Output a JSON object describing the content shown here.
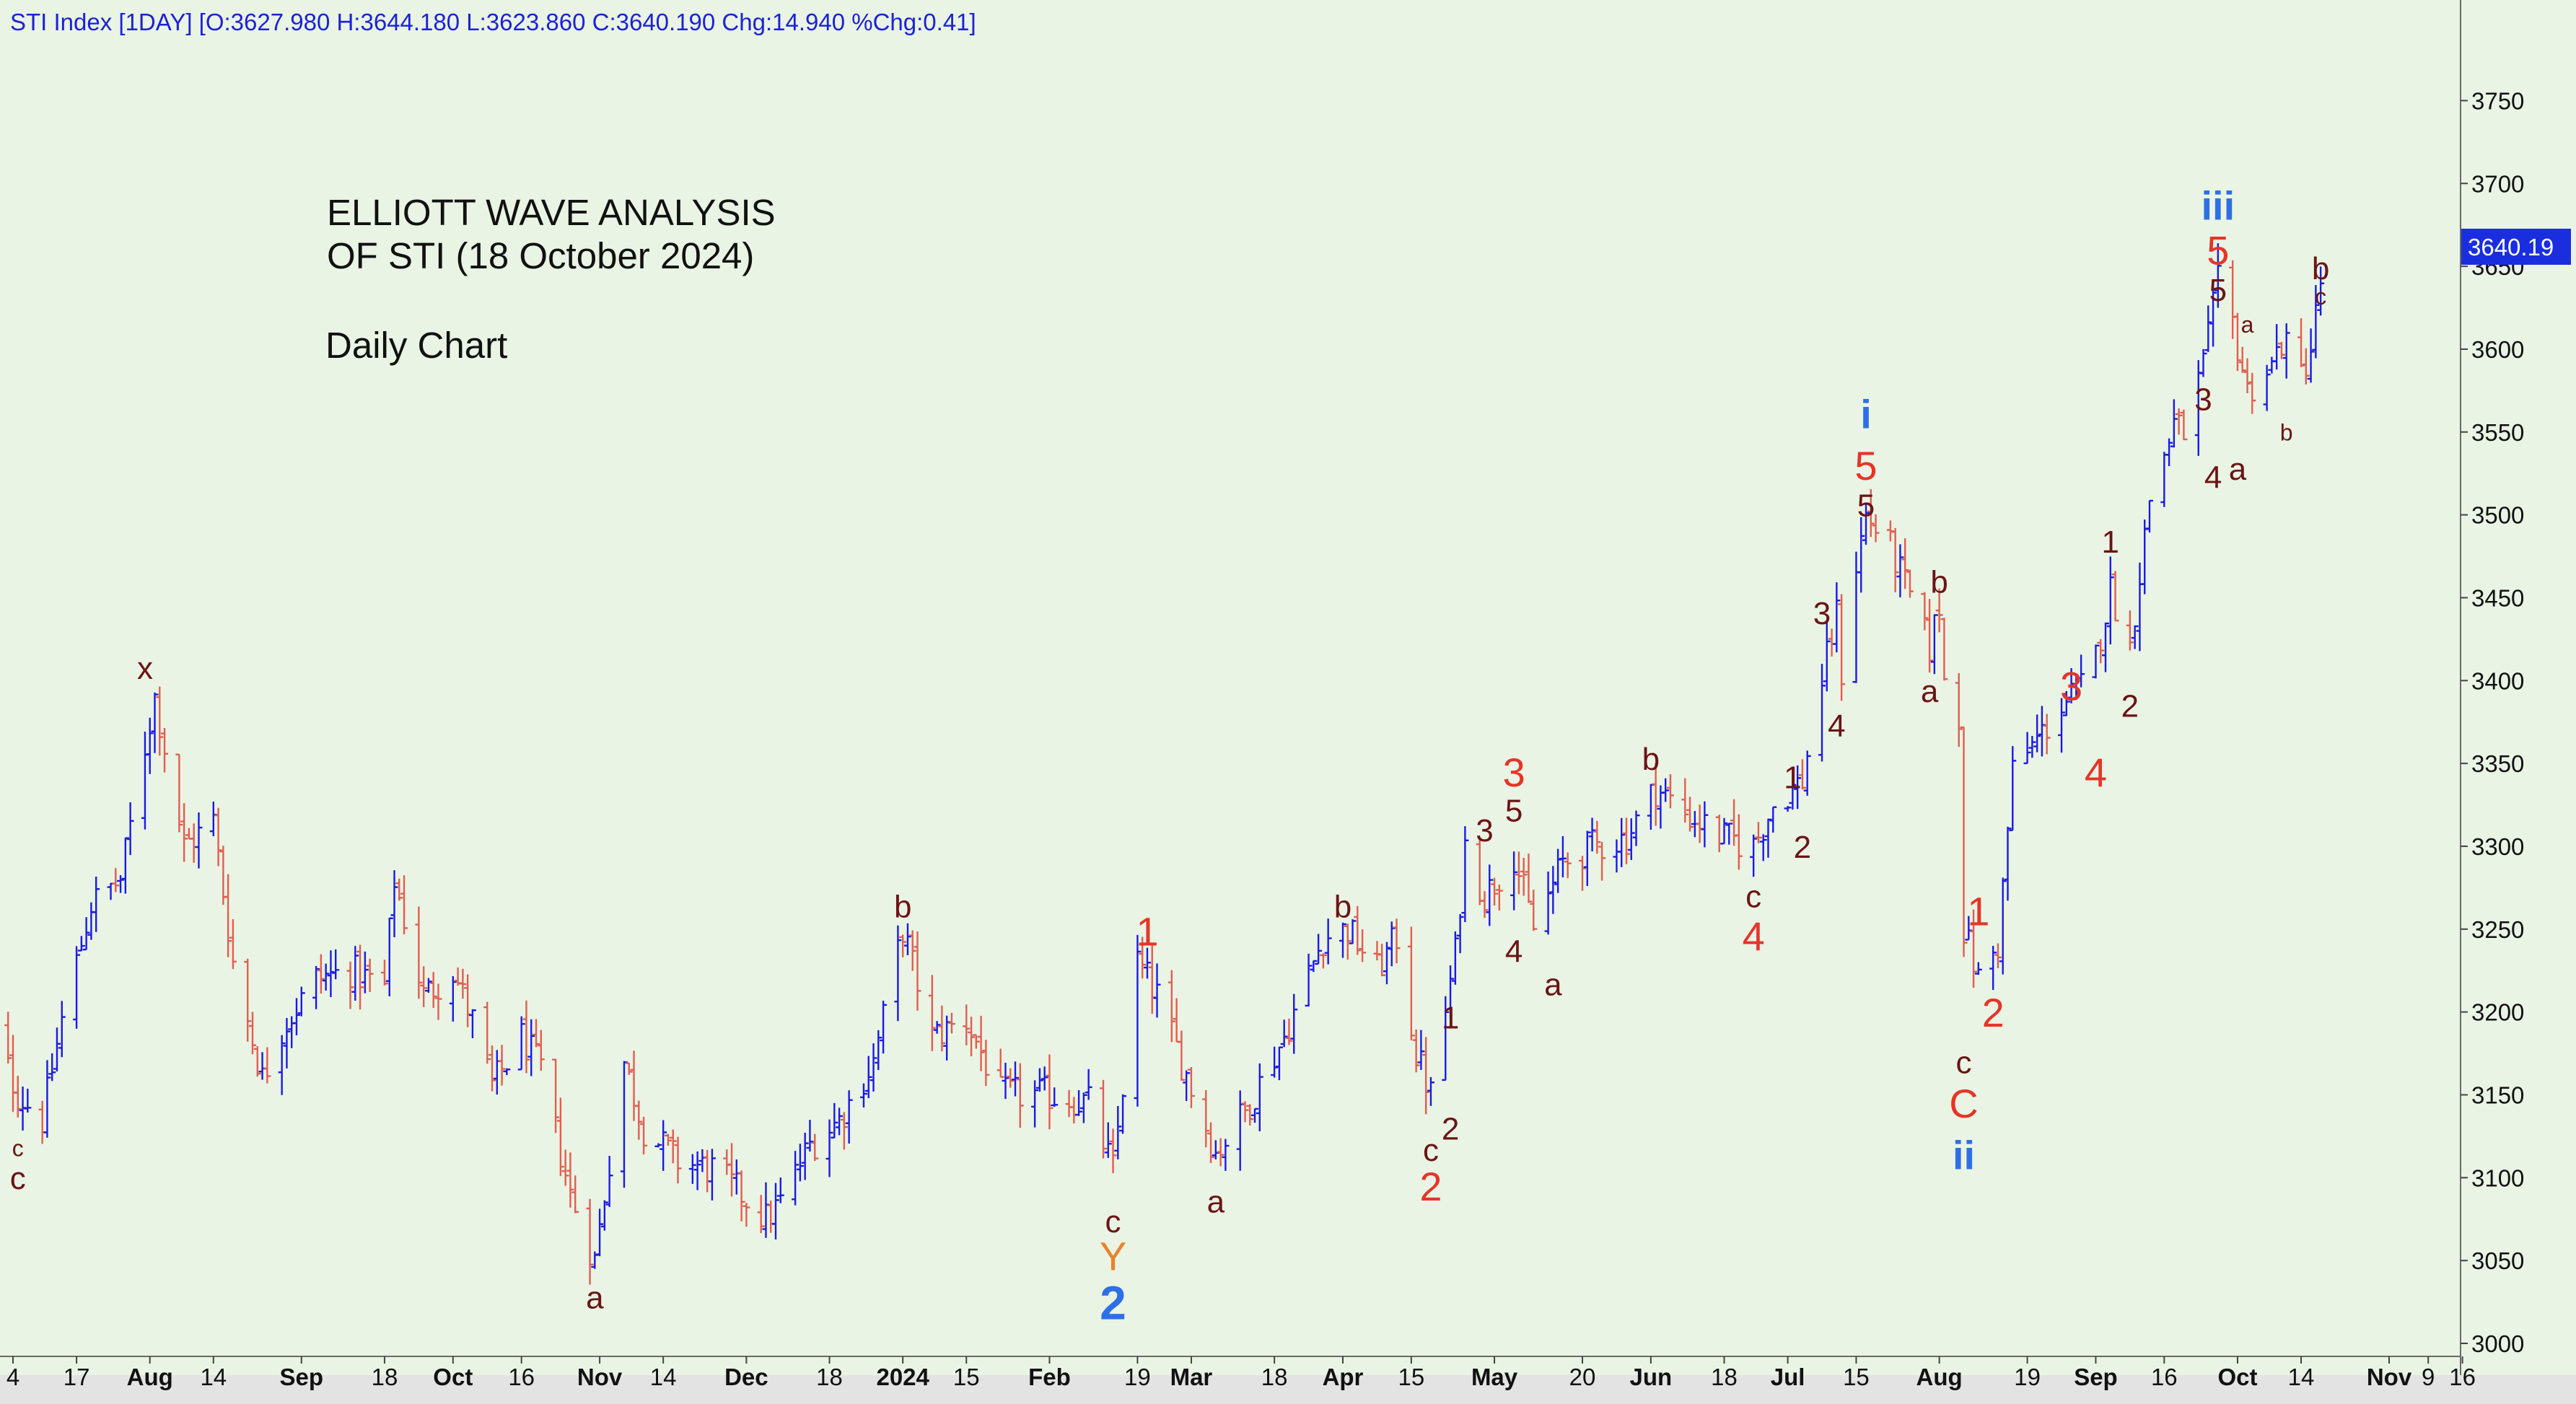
{
  "header": "STI Index [1DAY] [O:3627.980 H:3644.180 L:3623.860 C:3640.190 Chg:14.940 %Chg:0.41]",
  "annotation": {
    "title_line1": "ELLIOTT WAVE ANALYSIS",
    "title_line2": "OF STI (18 October 2024)",
    "subtitle": "Daily Chart"
  },
  "price_tag": "3640.19",
  "colors": {
    "background": "#e9f4e4",
    "up": "#1a1ae6",
    "down": "#e35d4f",
    "wave_red": "#e53528",
    "wave_dark": "#6b1414",
    "wave_blue": "#2f6fe6",
    "tag": "#1a2ee0"
  },
  "chart_data": {
    "type": "ohlc",
    "ylim": [
      3000,
      3775
    ],
    "y_ticks": [
      3000,
      3050,
      3100,
      3150,
      3200,
      3250,
      3300,
      3350,
      3400,
      3450,
      3500,
      3550,
      3600,
      3650,
      3700,
      3750
    ],
    "x_ticks": [
      {
        "label": "4",
        "date": "2023-07-04",
        "bold": false
      },
      {
        "label": "17",
        "date": "2023-07-17",
        "bold": false
      },
      {
        "label": "Aug",
        "date": "2023-08-01",
        "bold": true
      },
      {
        "label": "14",
        "date": "2023-08-14",
        "bold": false
      },
      {
        "label": "Sep",
        "date": "2023-09-01",
        "bold": true
      },
      {
        "label": "18",
        "date": "2023-09-18",
        "bold": false
      },
      {
        "label": "Oct",
        "date": "2023-10-02",
        "bold": true
      },
      {
        "label": "16",
        "date": "2023-10-16",
        "bold": false
      },
      {
        "label": "Nov",
        "date": "2023-11-01",
        "bold": true
      },
      {
        "label": "14",
        "date": "2023-11-14",
        "bold": false
      },
      {
        "label": "Dec",
        "date": "2023-12-01",
        "bold": true
      },
      {
        "label": "18",
        "date": "2023-12-18",
        "bold": false
      },
      {
        "label": "2024",
        "date": "2024-01-02",
        "bold": true
      },
      {
        "label": "15",
        "date": "2024-01-15",
        "bold": false
      },
      {
        "label": "Feb",
        "date": "2024-02-01",
        "bold": true
      },
      {
        "label": "19",
        "date": "2024-02-19",
        "bold": false
      },
      {
        "label": "Mar",
        "date": "2024-03-01",
        "bold": true
      },
      {
        "label": "18",
        "date": "2024-03-18",
        "bold": false
      },
      {
        "label": "Apr",
        "date": "2024-04-01",
        "bold": true
      },
      {
        "label": "15",
        "date": "2024-04-15",
        "bold": false
      },
      {
        "label": "May",
        "date": "2024-05-02",
        "bold": true
      },
      {
        "label": "20",
        "date": "2024-05-20",
        "bold": false
      },
      {
        "label": "Jun",
        "date": "2024-06-03",
        "bold": true
      },
      {
        "label": "18",
        "date": "2024-06-18",
        "bold": false
      },
      {
        "label": "Jul",
        "date": "2024-07-01",
        "bold": true
      },
      {
        "label": "15",
        "date": "2024-07-15",
        "bold": false
      },
      {
        "label": "Aug",
        "date": "2024-08-01",
        "bold": true
      },
      {
        "label": "19",
        "date": "2024-08-19",
        "bold": false
      },
      {
        "label": "Sep",
        "date": "2024-09-02",
        "bold": true
      },
      {
        "label": "16",
        "date": "2024-09-16",
        "bold": false
      },
      {
        "label": "Oct",
        "date": "2024-10-01",
        "bold": true
      },
      {
        "label": "14",
        "date": "2024-10-14",
        "bold": false
      },
      {
        "label": "Nov",
        "date": "2024-11-01",
        "bold": true
      },
      {
        "label": "9",
        "date": "2024-11-09",
        "bold": false
      },
      {
        "label": "16",
        "date": "2024-11-16",
        "bold": false
      }
    ],
    "path_points": [
      [
        "2023-06-28",
        3205
      ],
      [
        "2023-07-05",
        3150
      ],
      [
        "2023-07-10",
        3135
      ],
      [
        "2023-07-14",
        3195
      ],
      [
        "2023-07-20",
        3265
      ],
      [
        "2023-07-26",
        3280
      ],
      [
        "2023-07-31",
        3360
      ],
      [
        "2023-08-02",
        3390
      ],
      [
        "2023-08-08",
        3300
      ],
      [
        "2023-08-14",
        3315
      ],
      [
        "2023-08-18",
        3230
      ],
      [
        "2023-08-24",
        3160
      ],
      [
        "2023-08-28",
        3190
      ],
      [
        "2023-09-04",
        3220
      ],
      [
        "2023-09-11",
        3225
      ],
      [
        "2023-09-18",
        3215
      ],
      [
        "2023-09-20",
        3280
      ],
      [
        "2023-09-26",
        3210
      ],
      [
        "2023-10-02",
        3225
      ],
      [
        "2023-10-06",
        3195
      ],
      [
        "2023-10-10",
        3155
      ],
      [
        "2023-10-16",
        3185
      ],
      [
        "2023-10-20",
        3165
      ],
      [
        "2023-10-26",
        3090
      ],
      [
        "2023-10-31",
        3050
      ],
      [
        "2023-11-06",
        3170
      ],
      [
        "2023-11-10",
        3130
      ],
      [
        "2023-11-17",
        3110
      ],
      [
        "2023-11-24",
        3105
      ],
      [
        "2023-11-30",
        3090
      ],
      [
        "2023-12-05",
        3075
      ],
      [
        "2023-12-08",
        3085
      ],
      [
        "2023-12-14",
        3120
      ],
      [
        "2023-12-20",
        3135
      ],
      [
        "2023-12-27",
        3170
      ],
      [
        "2024-01-02",
        3250
      ],
      [
        "2024-01-08",
        3185
      ],
      [
        "2024-01-15",
        3195
      ],
      [
        "2024-01-22",
        3150
      ],
      [
        "2024-02-01",
        3150
      ],
      [
        "2024-02-09",
        3145
      ],
      [
        "2024-02-14",
        3105
      ],
      [
        "2024-02-19",
        3230
      ],
      [
        "2024-02-23",
        3210
      ],
      [
        "2024-02-28",
        3170
      ],
      [
        "2024-03-06",
        3115
      ],
      [
        "2024-03-12",
        3140
      ],
      [
        "2024-03-20",
        3185
      ],
      [
        "2024-03-28",
        3245
      ],
      [
        "2024-04-02",
        3250
      ],
      [
        "2024-04-08",
        3225
      ],
      [
        "2024-04-12",
        3245
      ],
      [
        "2024-04-16",
        3175
      ],
      [
        "2024-04-19",
        3150
      ],
      [
        "2024-04-24",
        3235
      ],
      [
        "2024-04-26",
        3300
      ],
      [
        "2024-04-30",
        3270
      ],
      [
        "2024-05-06",
        3295
      ],
      [
        "2024-05-10",
        3250
      ],
      [
        "2024-05-16",
        3290
      ],
      [
        "2024-05-22",
        3300
      ],
      [
        "2024-05-29",
        3305
      ],
      [
        "2024-06-04",
        3335
      ],
      [
        "2024-06-10",
        3320
      ],
      [
        "2024-06-18",
        3305
      ],
      [
        "2024-06-24",
        3300
      ],
      [
        "2024-06-28",
        3325
      ],
      [
        "2024-07-04",
        3340
      ],
      [
        "2024-07-08",
        3400
      ],
      [
        "2024-07-11",
        3440
      ],
      [
        "2024-07-12",
        3405
      ],
      [
        "2024-07-15",
        3470
      ],
      [
        "2024-07-17",
        3500
      ],
      [
        "2024-07-22",
        3480
      ],
      [
        "2024-07-26",
        3450
      ],
      [
        "2024-07-30",
        3420
      ],
      [
        "2024-08-01",
        3445
      ],
      [
        "2024-08-02",
        3400
      ],
      [
        "2024-08-05",
        3380
      ],
      [
        "2024-08-06",
        3250
      ],
      [
        "2024-08-09",
        3220
      ],
      [
        "2024-08-13",
        3240
      ],
      [
        "2024-08-16",
        3345
      ],
      [
        "2024-08-20",
        3360
      ],
      [
        "2024-08-26",
        3385
      ],
      [
        "2024-08-30",
        3395
      ],
      [
        "2024-09-02",
        3415
      ],
      [
        "2024-09-05",
        3455
      ],
      [
        "2024-09-09",
        3420
      ],
      [
        "2024-09-13",
        3510
      ],
      [
        "2024-09-18",
        3555
      ],
      [
        "2024-09-20",
        3550
      ],
      [
        "2024-09-24",
        3590
      ],
      [
        "2024-09-27",
        3640
      ],
      [
        "2024-09-30",
        3615
      ],
      [
        "2024-10-03",
        3575
      ],
      [
        "2024-10-08",
        3590
      ],
      [
        "2024-10-10",
        3605
      ],
      [
        "2024-10-14",
        3585
      ],
      [
        "2024-10-16",
        3600
      ],
      [
        "2024-10-18",
        3640
      ]
    ],
    "wave_labels": [
      {
        "text": "x",
        "date": "2023-07-31",
        "price": 3408,
        "color": "dark",
        "size": "m"
      },
      {
        "text": "c",
        "date": "2023-07-05",
        "price": 3118,
        "color": "dark",
        "size": "s"
      },
      {
        "text": "c",
        "date": "2023-07-05",
        "price": 3100,
        "color": "dark",
        "size": "m"
      },
      {
        "text": "a",
        "date": "2023-10-31",
        "price": 3028,
        "color": "dark",
        "size": "m"
      },
      {
        "text": "b",
        "date": "2024-01-02",
        "price": 3264,
        "color": "dark",
        "size": "m"
      },
      {
        "text": "c",
        "date": "2024-02-14",
        "price": 3074,
        "color": "dark",
        "size": "m"
      },
      {
        "text": "Y",
        "date": "2024-02-14",
        "price": 3053,
        "color": "orange",
        "size": "l"
      },
      {
        "text": "2",
        "date": "2024-02-14",
        "price": 3025,
        "color": "blue",
        "size": "xl"
      },
      {
        "text": "1",
        "date": "2024-02-21",
        "price": 3249,
        "color": "red",
        "size": "l"
      },
      {
        "text": "a",
        "date": "2024-03-06",
        "price": 3086,
        "color": "dark",
        "size": "m"
      },
      {
        "text": "b",
        "date": "2024-04-01",
        "price": 3264,
        "color": "dark",
        "size": "m"
      },
      {
        "text": "1",
        "date": "2024-04-23",
        "price": 3197,
        "color": "dark",
        "size": "m"
      },
      {
        "text": "2",
        "date": "2024-04-23",
        "price": 3130,
        "color": "dark",
        "size": "m"
      },
      {
        "text": "c",
        "date": "2024-04-19",
        "price": 3117,
        "color": "dark",
        "size": "m"
      },
      {
        "text": "2",
        "date": "2024-04-19",
        "price": 3095,
        "color": "red",
        "size": "l"
      },
      {
        "text": "3",
        "date": "2024-04-30",
        "price": 3310,
        "color": "dark",
        "size": "m"
      },
      {
        "text": "4",
        "date": "2024-05-06",
        "price": 3237,
        "color": "dark",
        "size": "m"
      },
      {
        "text": "3",
        "date": "2024-05-06",
        "price": 3345,
        "color": "red",
        "size": "l"
      },
      {
        "text": "5",
        "date": "2024-05-06",
        "price": 3322,
        "color": "dark",
        "size": "m"
      },
      {
        "text": "a",
        "date": "2024-05-14",
        "price": 3217,
        "color": "dark",
        "size": "m"
      },
      {
        "text": "b",
        "date": "2024-06-03",
        "price": 3353,
        "color": "dark",
        "size": "m"
      },
      {
        "text": "c",
        "date": "2024-06-24",
        "price": 3270,
        "color": "dark",
        "size": "m"
      },
      {
        "text": "4",
        "date": "2024-06-24",
        "price": 3246,
        "color": "red",
        "size": "l"
      },
      {
        "text": "1",
        "date": "2024-07-02",
        "price": 3342,
        "color": "dark",
        "size": "m"
      },
      {
        "text": "2",
        "date": "2024-07-04",
        "price": 3300,
        "color": "dark",
        "size": "m"
      },
      {
        "text": "3",
        "date": "2024-07-08",
        "price": 3441,
        "color": "dark",
        "size": "m"
      },
      {
        "text": "4",
        "date": "2024-07-11",
        "price": 3373,
        "color": "dark",
        "size": "m"
      },
      {
        "text": "i",
        "date": "2024-07-17",
        "price": 3561,
        "color": "blue",
        "size": "l"
      },
      {
        "text": "5",
        "date": "2024-07-17",
        "price": 3530,
        "color": "red",
        "size": "l"
      },
      {
        "text": "5",
        "date": "2024-07-17",
        "price": 3506,
        "color": "dark",
        "size": "m"
      },
      {
        "text": "b",
        "date": "2024-08-01",
        "price": 3460,
        "color": "dark",
        "size": "m"
      },
      {
        "text": "a",
        "date": "2024-07-30",
        "price": 3394,
        "color": "dark",
        "size": "m"
      },
      {
        "text": "c",
        "date": "2024-08-06",
        "price": 3170,
        "color": "dark",
        "size": "m"
      },
      {
        "text": "C",
        "date": "2024-08-06",
        "price": 3145,
        "color": "red",
        "size": "l"
      },
      {
        "text": "ii",
        "date": "2024-08-06",
        "price": 3114,
        "color": "blue",
        "size": "l"
      },
      {
        "text": "1",
        "date": "2024-08-09",
        "price": 3261,
        "color": "red",
        "size": "l"
      },
      {
        "text": "2",
        "date": "2024-08-12",
        "price": 3200,
        "color": "red",
        "size": "l"
      },
      {
        "text": "3",
        "date": "2024-08-28",
        "price": 3397,
        "color": "red",
        "size": "l"
      },
      {
        "text": "4",
        "date": "2024-09-02",
        "price": 3345,
        "color": "red",
        "size": "l"
      },
      {
        "text": "1",
        "date": "2024-09-05",
        "price": 3484,
        "color": "dark",
        "size": "m"
      },
      {
        "text": "2",
        "date": "2024-09-09",
        "price": 3385,
        "color": "dark",
        "size": "m"
      },
      {
        "text": "3",
        "date": "2024-09-24",
        "price": 3570,
        "color": "dark",
        "size": "m"
      },
      {
        "text": "4",
        "date": "2024-09-26",
        "price": 3523,
        "color": "dark",
        "size": "m"
      },
      {
        "text": "iii",
        "date": "2024-09-27",
        "price": 3687,
        "color": "blue",
        "size": "l"
      },
      {
        "text": "5",
        "date": "2024-09-27",
        "price": 3660,
        "color": "red",
        "size": "l"
      },
      {
        "text": "5",
        "date": "2024-09-27",
        "price": 3636,
        "color": "dark",
        "size": "m"
      },
      {
        "text": "a",
        "date": "2024-10-01",
        "price": 3528,
        "color": "dark",
        "size": "m"
      },
      {
        "text": "a",
        "date": "2024-10-03",
        "price": 3615,
        "color": "dark",
        "size": "s"
      },
      {
        "text": "b",
        "date": "2024-10-11",
        "price": 3550,
        "color": "dark",
        "size": "s"
      },
      {
        "text": "b",
        "date": "2024-10-18",
        "price": 3649,
        "color": "dark",
        "size": "m"
      },
      {
        "text": "c",
        "date": "2024-10-18",
        "price": 3632,
        "color": "dark",
        "size": "s"
      }
    ]
  }
}
